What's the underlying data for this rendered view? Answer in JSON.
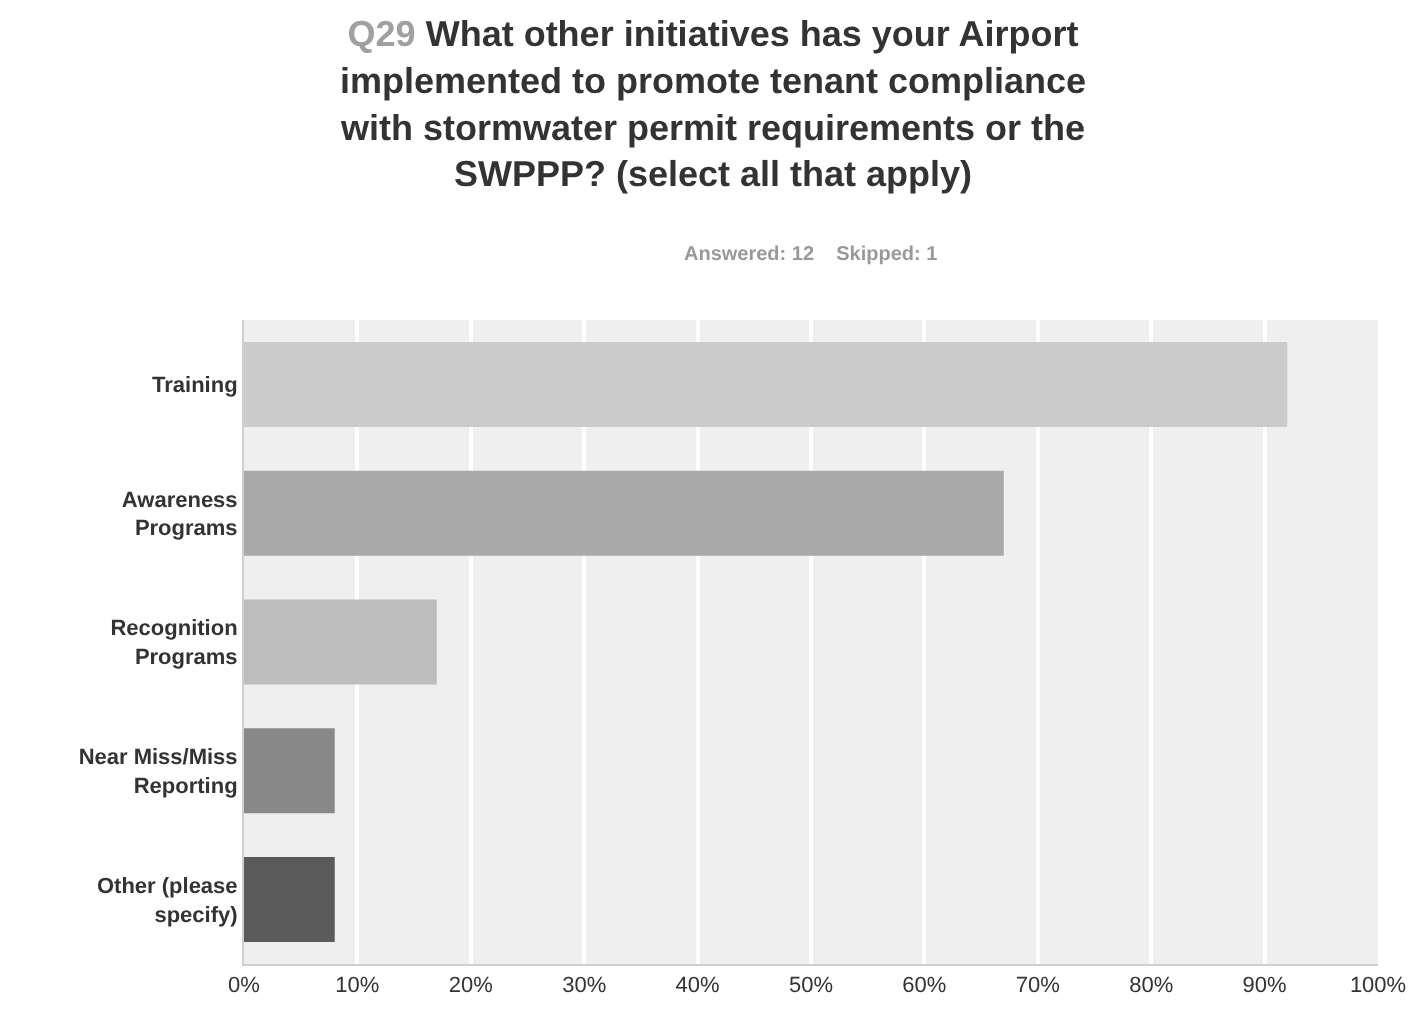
{
  "chart_data": {
    "type": "bar",
    "orientation": "horizontal",
    "title": "Q29 What other initiatives has your Airport implemented to promote tenant compliance with stormwater permit requirements or the SWPPP? (select all that apply)",
    "subtitle": "Answered: 12    Skipped: 1",
    "categories": [
      "Training",
      "Awareness Programs",
      "Recognition Programs",
      "Near Miss/Miss Reporting",
      "Other (please specify)"
    ],
    "values": [
      92,
      67,
      17,
      8,
      8
    ],
    "colors": [
      "#cbcbcb",
      "#a9a9a9",
      "#bdbdbd",
      "#888888",
      "#5a5a5a"
    ],
    "xlim": [
      0,
      100
    ],
    "xticks": [
      {
        "value": 0,
        "label": "0%"
      },
      {
        "value": 10,
        "label": "10%"
      },
      {
        "value": 20,
        "label": "20%"
      },
      {
        "value": 30,
        "label": "30%"
      },
      {
        "value": 40,
        "label": "40%"
      },
      {
        "value": 50,
        "label": "50%"
      },
      {
        "value": 60,
        "label": "60%"
      },
      {
        "value": 70,
        "label": "70%"
      },
      {
        "value": 80,
        "label": "80%"
      },
      {
        "value": 90,
        "label": "90%"
      },
      {
        "value": 100,
        "label": "100%"
      }
    ],
    "grid": "x",
    "legend": false
  }
}
